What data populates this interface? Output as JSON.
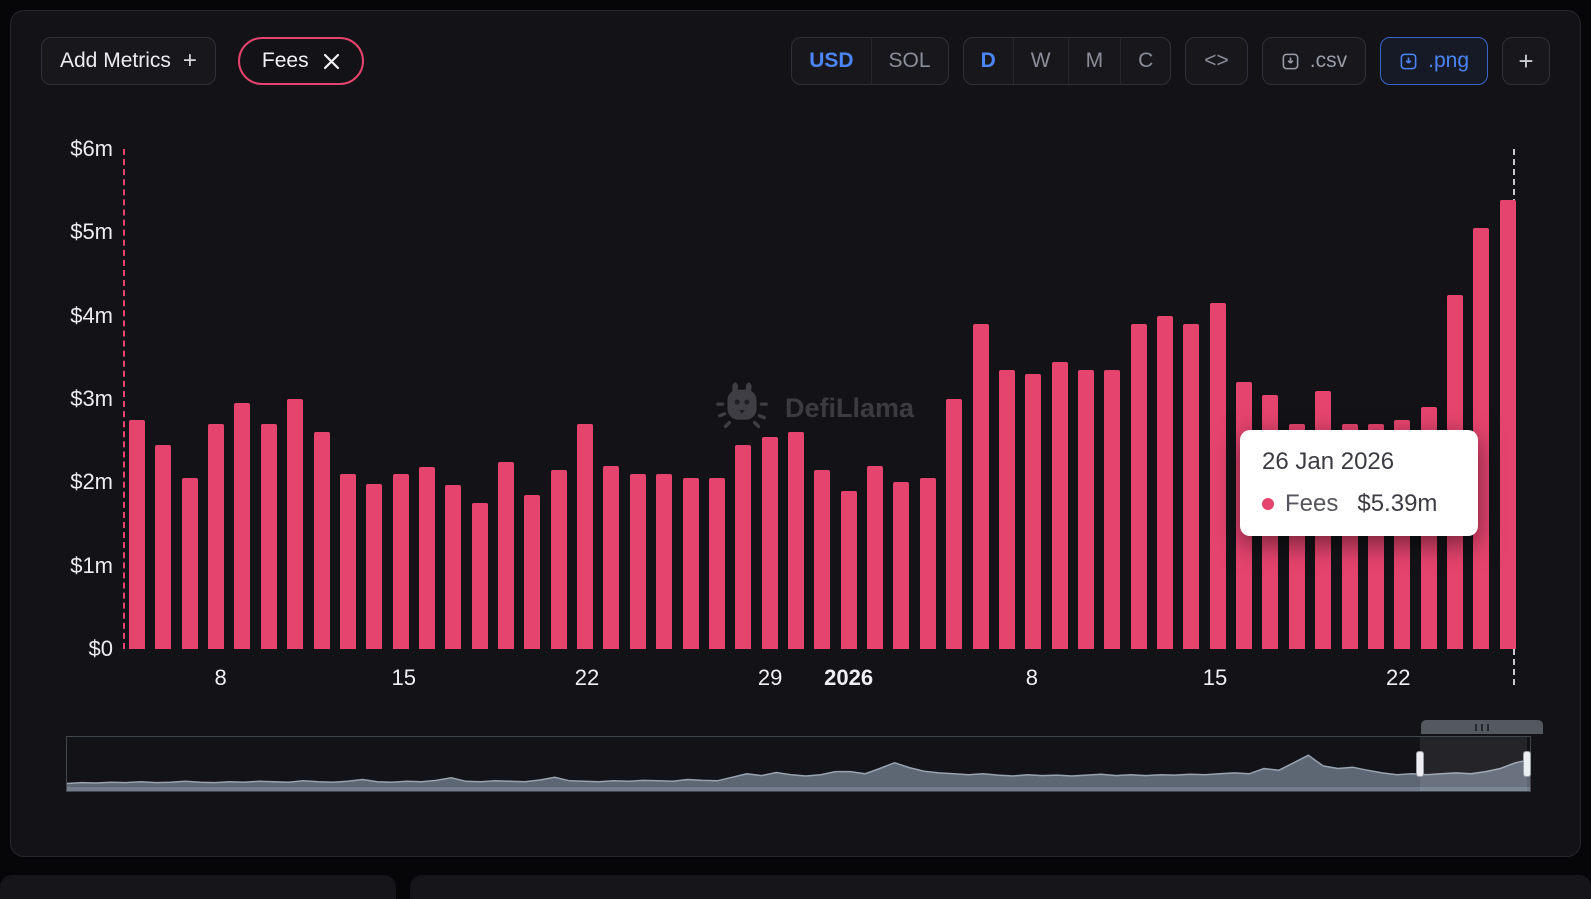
{
  "toolbar": {
    "add_metrics_label": "Add Metrics",
    "add_metrics_plus": "+",
    "metric_pill_label": "Fees",
    "currency_options": [
      "USD",
      "SOL"
    ],
    "currency_selected": "USD",
    "interval_options": [
      "D",
      "W",
      "M",
      "C"
    ],
    "interval_selected": "D",
    "embed_label": "<>",
    "csv_label": ".csv",
    "png_label": ".png",
    "add_chart_label": "+"
  },
  "watermark_text": "DefiLlama",
  "tooltip": {
    "date": "26 Jan 2026",
    "series_label": "Fees",
    "value": "$5.39m"
  },
  "chart_data": {
    "type": "bar",
    "title": "Fees",
    "ylim_musd": [
      0,
      6
    ],
    "y_ticks": [
      "$6m",
      "$5m",
      "$4m",
      "$3m",
      "$2m",
      "$1m",
      "$0"
    ],
    "x_ticks": [
      {
        "label": "8",
        "index": 3
      },
      {
        "label": "15",
        "index": 10
      },
      {
        "label": "22",
        "index": 17
      },
      {
        "label": "29",
        "index": 24
      },
      {
        "label": "2026",
        "index": 27,
        "bold": true
      },
      {
        "label": "8",
        "index": 34
      },
      {
        "label": "15",
        "index": 41
      },
      {
        "label": "22",
        "index": 48
      }
    ],
    "series": [
      {
        "name": "Fees",
        "color": "#e5446e",
        "values_musd": [
          2.75,
          2.45,
          2.05,
          2.7,
          2.95,
          2.7,
          3.0,
          2.6,
          2.1,
          1.98,
          2.1,
          2.18,
          1.97,
          1.75,
          2.25,
          1.85,
          2.15,
          2.7,
          2.2,
          2.1,
          2.1,
          2.05,
          2.05,
          2.45,
          2.55,
          2.6,
          2.15,
          1.9,
          2.2,
          2.0,
          2.05,
          3.0,
          3.9,
          3.35,
          3.3,
          3.45,
          3.35,
          3.35,
          3.9,
          4.0,
          3.9,
          4.15,
          3.2,
          3.05,
          2.7,
          3.1,
          2.7,
          2.7,
          2.75,
          2.9,
          4.25,
          5.05,
          5.39
        ]
      }
    ],
    "highlighted_bar": {
      "date": "26 Jan 2026",
      "value_musd": 5.39
    },
    "legend_position": "none",
    "grid": false
  },
  "navigator": {
    "area_color": "#5d6673",
    "line_color": "#98a2b0",
    "selection_start_pct": 92.5,
    "selection_end_pct": 99.8,
    "profile": [
      0.08,
      0.1,
      0.09,
      0.11,
      0.1,
      0.12,
      0.1,
      0.11,
      0.13,
      0.11,
      0.1,
      0.12,
      0.11,
      0.13,
      0.12,
      0.11,
      0.14,
      0.12,
      0.11,
      0.13,
      0.17,
      0.12,
      0.11,
      0.13,
      0.12,
      0.15,
      0.21,
      0.13,
      0.12,
      0.14,
      0.13,
      0.12,
      0.16,
      0.22,
      0.14,
      0.13,
      0.12,
      0.14,
      0.13,
      0.15,
      0.14,
      0.13,
      0.17,
      0.15,
      0.14,
      0.22,
      0.3,
      0.26,
      0.33,
      0.28,
      0.25,
      0.28,
      0.35,
      0.35,
      0.3,
      0.42,
      0.55,
      0.44,
      0.36,
      0.32,
      0.3,
      0.28,
      0.3,
      0.27,
      0.25,
      0.28,
      0.26,
      0.27,
      0.25,
      0.27,
      0.29,
      0.26,
      0.28,
      0.26,
      0.28,
      0.27,
      0.29,
      0.28,
      0.3,
      0.32,
      0.3,
      0.42,
      0.38,
      0.55,
      0.72,
      0.48,
      0.42,
      0.45,
      0.38,
      0.32,
      0.28,
      0.3,
      0.28,
      0.3,
      0.32,
      0.3,
      0.35,
      0.42,
      0.55,
      0.62
    ]
  },
  "colors": {
    "accent_pink": "#e5446e",
    "accent_blue": "#4c85f6",
    "panel_bg": "#131317",
    "tooltip_bg": "#ffffff"
  }
}
